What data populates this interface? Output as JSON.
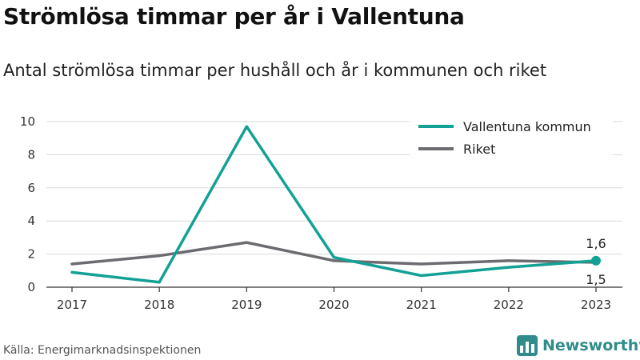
{
  "header": {
    "title": "Strömlösa timmar per år i Vallentuna",
    "subtitle": "Antal strömlösa timmar per hushåll och år i kommunen och riket"
  },
  "footer": {
    "source": "Källa: Energimarknadsinspektionen",
    "brand": "Newsworthy",
    "brand_icon": "bar-chart-logo-icon"
  },
  "colors": {
    "vallentuna": "#13a195",
    "riket": "#6b6b70",
    "grid": "#d9d9d9",
    "brand": "#2f8c8a"
  },
  "chart_data": {
    "type": "line",
    "x": [
      "2017",
      "2018",
      "2019",
      "2020",
      "2021",
      "2022",
      "2023"
    ],
    "ylim": [
      0,
      10
    ],
    "yticks": [
      0,
      2,
      4,
      6,
      8,
      10
    ],
    "grid": true,
    "legend_position": "top-right",
    "series": [
      {
        "name": "Vallentuna kommun",
        "values": [
          0.9,
          0.3,
          9.7,
          1.8,
          0.7,
          1.2,
          1.6
        ]
      },
      {
        "name": "Riket",
        "values": [
          1.4,
          1.9,
          2.7,
          1.6,
          1.4,
          1.6,
          1.5
        ]
      }
    ],
    "annotations": [
      {
        "series": 0,
        "x": "2023",
        "text": "1,6",
        "position": "above"
      },
      {
        "series": 1,
        "x": "2023",
        "text": "1,5",
        "position": "below"
      }
    ]
  }
}
